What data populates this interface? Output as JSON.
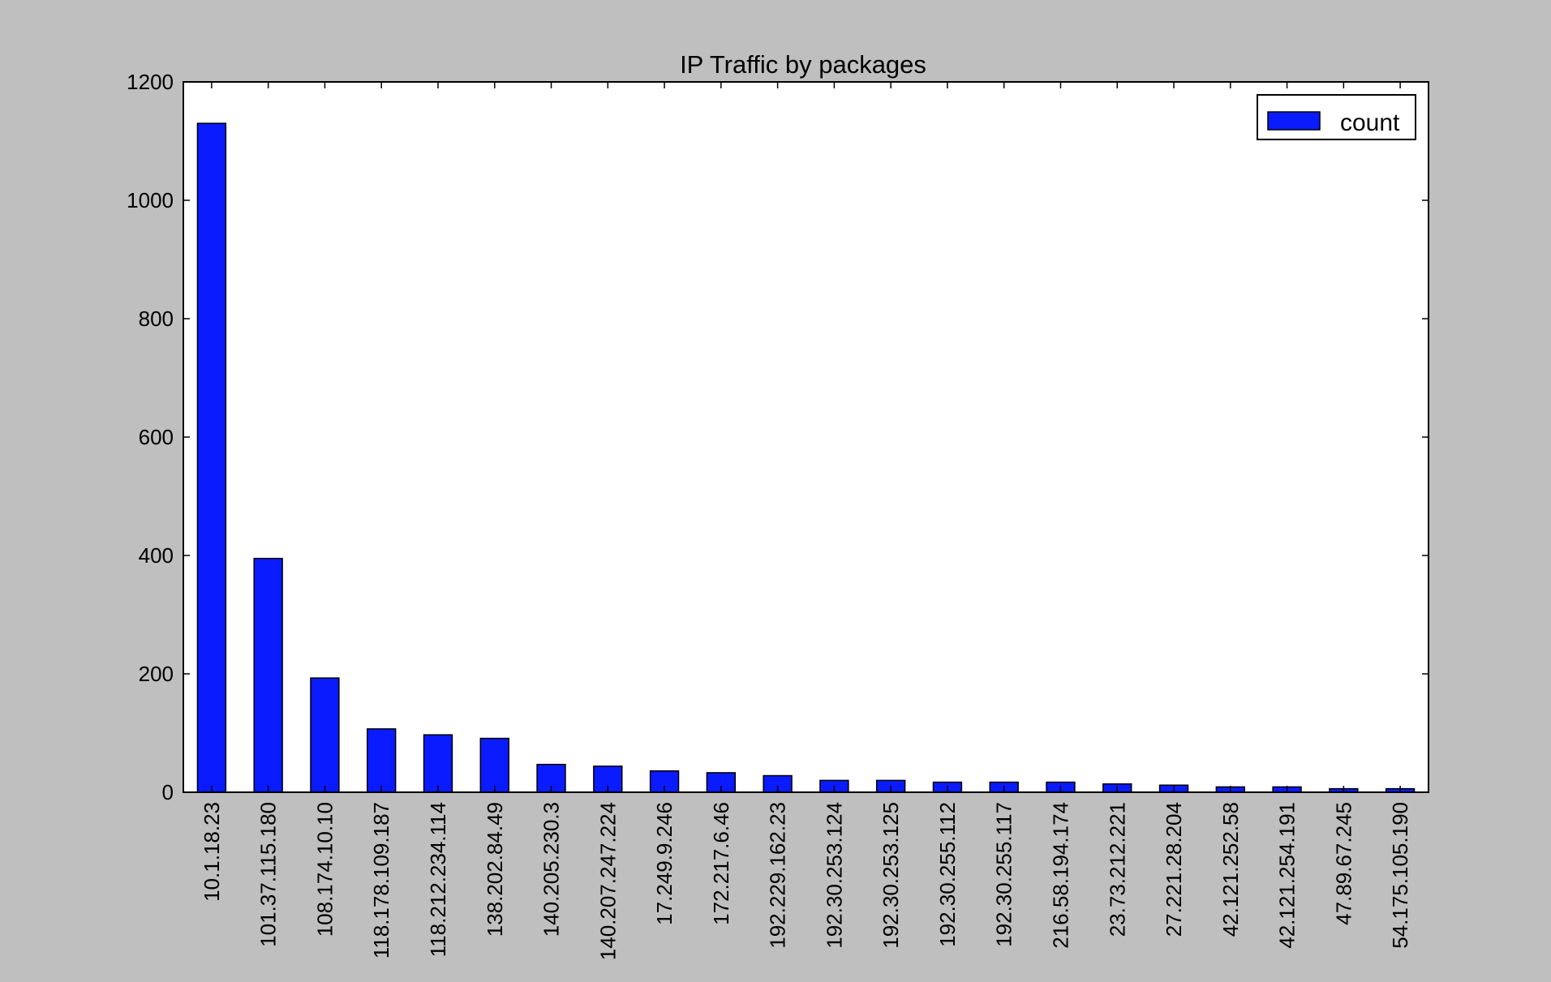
{
  "chart_data": {
    "type": "bar",
    "title": "IP Traffic by packages",
    "xlabel": "",
    "ylabel": "",
    "categories": [
      "10.1.18.23",
      "101.37.115.180",
      "108.174.10.10",
      "118.178.109.187",
      "118.212.234.114",
      "138.202.84.49",
      "140.205.230.3",
      "140.207.247.224",
      "17.249.9.246",
      "172.217.6.46",
      "192.229.162.23",
      "192.30.253.124",
      "192.30.253.125",
      "192.30.255.112",
      "192.30.255.117",
      "216.58.194.174",
      "23.73.212.221",
      "27.221.28.204",
      "42.121.252.58",
      "42.121.254.191",
      "47.89.67.245",
      "54.175.105.190"
    ],
    "series": [
      {
        "name": "count",
        "values": [
          1130,
          395,
          193,
          107,
          97,
          91,
          47,
          44,
          36,
          33,
          28,
          20,
          20,
          17,
          17,
          17,
          14,
          12,
          9,
          9,
          6,
          6
        ],
        "color": "#0a1cff"
      }
    ],
    "ylim": [
      0,
      1200
    ],
    "yticks": [
      0,
      200,
      400,
      600,
      800,
      1000,
      1200
    ],
    "grid": false,
    "legend": "top-right",
    "background_color": "#bfbfbf",
    "plot_background_color": "#ffffff"
  }
}
